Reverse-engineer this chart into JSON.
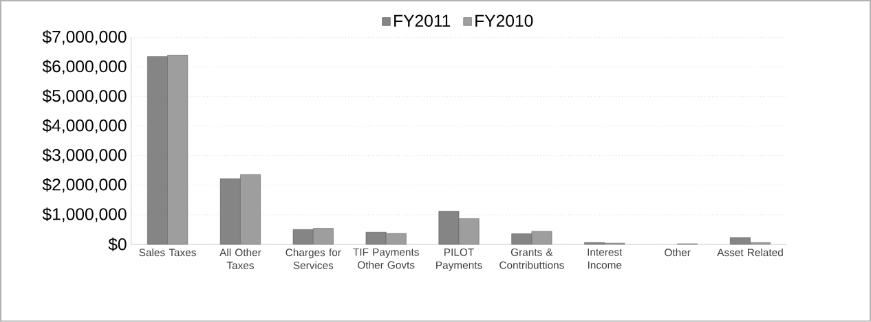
{
  "chart_data": {
    "type": "bar",
    "categories": [
      "Sales Taxes",
      "All Other Taxes",
      "Charges for Services",
      "TIF Payments Other Govts",
      "PILOT Payments",
      "Grants & Contributtions",
      "Interest Income",
      "Other",
      "Asset Related"
    ],
    "series": [
      {
        "name": "FY2011",
        "color": "#858585",
        "values": [
          6350000,
          2220000,
          500000,
          410000,
          1120000,
          360000,
          60000,
          null,
          230000
        ]
      },
      {
        "name": "FY2010",
        "color": "#9e9e9e",
        "values": [
          6400000,
          2360000,
          540000,
          370000,
          870000,
          440000,
          40000,
          20000,
          60000
        ]
      }
    ],
    "ylim": [
      0,
      7000000
    ],
    "yticks": [
      {
        "value": 0,
        "label": "$0"
      },
      {
        "value": 1000000,
        "label": "$1,000,000"
      },
      {
        "value": 2000000,
        "label": "$2,000,000"
      },
      {
        "value": 3000000,
        "label": "$3,000,000"
      },
      {
        "value": 4000000,
        "label": "$4,000,000"
      },
      {
        "value": 5000000,
        "label": "$5,000,000"
      },
      {
        "value": 6000000,
        "label": "$6,000,000"
      },
      {
        "value": 7000000,
        "label": "$7,000,000"
      }
    ],
    "grid": "y",
    "legend": "top"
  }
}
